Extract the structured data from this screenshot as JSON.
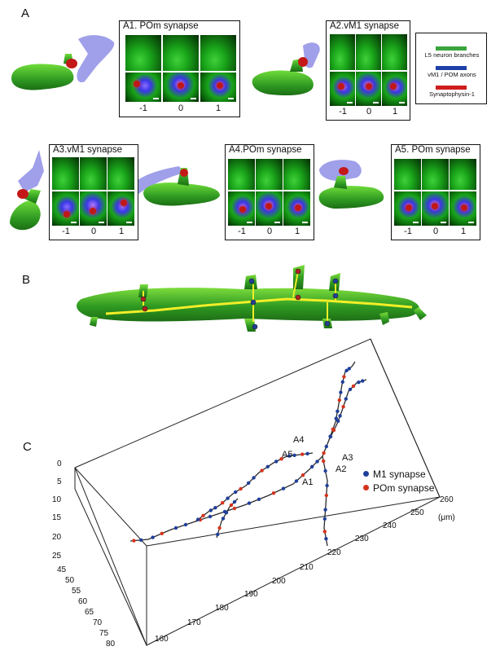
{
  "panel_letters": {
    "a": "A",
    "b": "B",
    "c": "C"
  },
  "insets": {
    "a1": {
      "title": "A1. POm synapse",
      "ticks": [
        "-1",
        "0",
        "1"
      ]
    },
    "a2": {
      "title": "A2.vM1 synapse",
      "ticks": [
        "-1",
        "0",
        "1"
      ]
    },
    "a3": {
      "title": "A3.vM1 synapse",
      "ticks": [
        "-1",
        "0",
        "1"
      ]
    },
    "a4": {
      "title": "A4.POm synapse",
      "ticks": [
        "-1",
        "0",
        "1"
      ]
    },
    "a5": {
      "title": "A5. POm synapse",
      "ticks": [
        "-1",
        "0",
        "1"
      ]
    }
  },
  "legend": {
    "items": [
      {
        "label": "L5 neuron branches",
        "color": "#3aa53a"
      },
      {
        "label": "vM1 / POM axons",
        "color": "#1f3fa8"
      },
      {
        "label": "Synaptophysin-1",
        "color": "#d01c1c"
      }
    ]
  },
  "panel_c": {
    "unit": "(μm)",
    "z_ticks": [
      "0",
      "5",
      "10",
      "15",
      "20",
      "25"
    ],
    "y_ticks": [
      "45",
      "50",
      "55",
      "60",
      "65",
      "70",
      "75",
      "80"
    ],
    "x_ticks": [
      "160",
      "170",
      "180",
      "190",
      "200",
      "210",
      "220",
      "230",
      "240",
      "250",
      "260"
    ],
    "synapse_labels": [
      "A4",
      "A5",
      "A3",
      "A2",
      "A1"
    ],
    "legend": [
      {
        "label": "M1 synapse",
        "color": "#1f3f9a"
      },
      {
        "label": "POm synapse",
        "color": "#d5331c"
      }
    ]
  }
}
